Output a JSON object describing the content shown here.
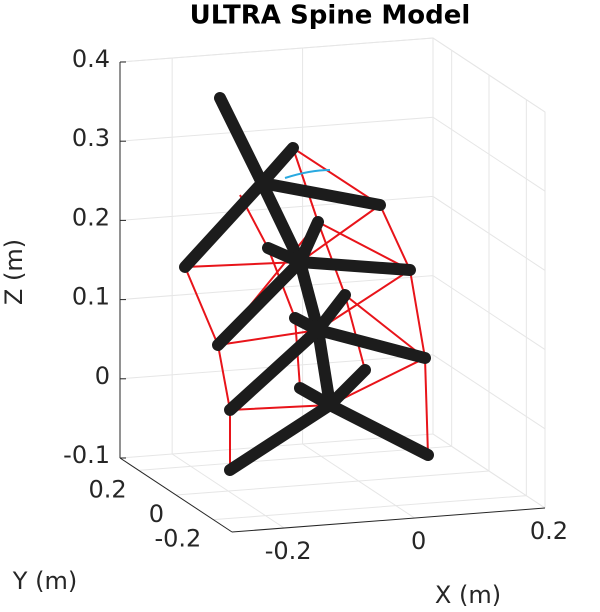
{
  "chart_data": {
    "type": "3d-model",
    "title": "ULTRA Spine Model",
    "xlabel": "X (m)",
    "ylabel": "Y (m)",
    "zlabel": "Z (m)",
    "xlim": [
      -0.28,
      0.2
    ],
    "ylim": [
      -0.3,
      0.3
    ],
    "zlim": [
      -0.1,
      0.4
    ],
    "xticks": [
      -0.2,
      0,
      0.2
    ],
    "yticks": [
      -0.2,
      0,
      0.2
    ],
    "zticks": [
      -0.1,
      0,
      0.1,
      0.2,
      0.3,
      0.4
    ],
    "grid": true
  }
}
